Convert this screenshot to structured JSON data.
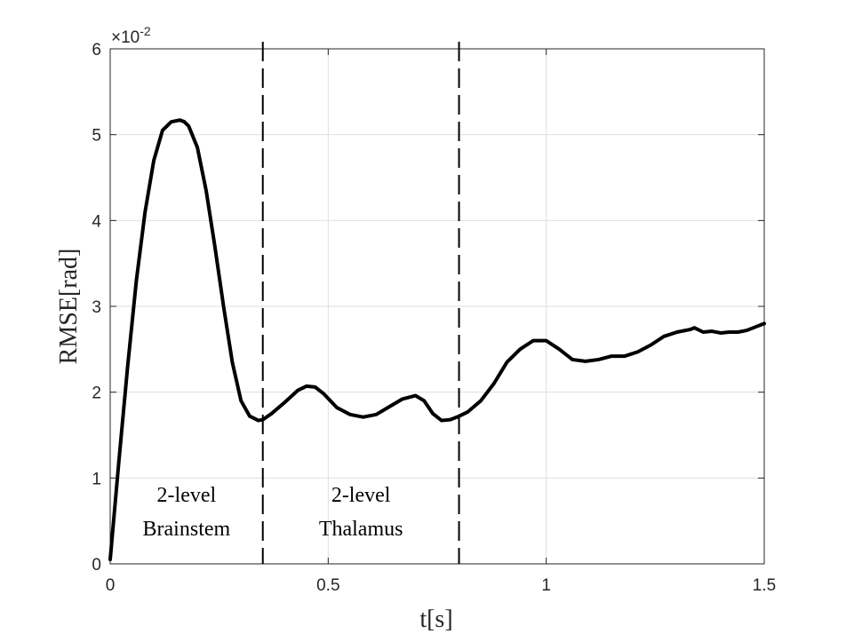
{
  "chart_data": {
    "type": "line",
    "title": "",
    "xlabel": "t[s]",
    "ylabel": "RMSE[rad]",
    "xlim": [
      0,
      1.5
    ],
    "ylim": [
      0,
      6
    ],
    "x_ticks": [
      0,
      0.5,
      1,
      1.5
    ],
    "x_tick_labels": [
      "0",
      "0.5",
      "1",
      "1.5"
    ],
    "y_ticks": [
      0,
      1,
      2,
      3,
      4,
      5,
      6
    ],
    "y_tick_labels": [
      "0",
      "1",
      "2",
      "3",
      "4",
      "5",
      "6"
    ],
    "y_multiplier_base": "×10",
    "y_multiplier_exp": "-2",
    "grid": true,
    "line_color": "#000000",
    "series": [
      {
        "x": [
          0,
          0.02,
          0.04,
          0.06,
          0.08,
          0.1,
          0.12,
          0.14,
          0.16,
          0.17,
          0.18,
          0.2,
          0.22,
          0.24,
          0.26,
          0.28,
          0.3,
          0.32,
          0.34,
          0.35,
          0.37,
          0.4,
          0.43,
          0.45,
          0.47,
          0.49,
          0.52,
          0.55,
          0.58,
          0.61,
          0.64,
          0.67,
          0.7,
          0.72,
          0.74,
          0.76,
          0.78,
          0.8,
          0.82,
          0.85,
          0.88,
          0.91,
          0.94,
          0.97,
          1.0,
          1.03,
          1.06,
          1.09,
          1.12,
          1.15,
          1.18,
          1.21,
          1.24,
          1.27,
          1.3,
          1.33,
          1.34,
          1.36,
          1.38,
          1.4,
          1.42,
          1.44,
          1.46,
          1.48,
          1.5
        ],
        "y": [
          0.05,
          1.2,
          2.3,
          3.3,
          4.1,
          4.7,
          5.05,
          5.15,
          5.17,
          5.15,
          5.1,
          4.85,
          4.35,
          3.7,
          3.0,
          2.35,
          1.9,
          1.72,
          1.67,
          1.68,
          1.75,
          1.88,
          2.02,
          2.07,
          2.06,
          1.98,
          1.82,
          1.74,
          1.71,
          1.74,
          1.83,
          1.92,
          1.96,
          1.9,
          1.75,
          1.67,
          1.68,
          1.72,
          1.77,
          1.9,
          2.1,
          2.35,
          2.5,
          2.6,
          2.6,
          2.5,
          2.38,
          2.36,
          2.38,
          2.42,
          2.42,
          2.47,
          2.55,
          2.65,
          2.7,
          2.73,
          2.75,
          2.7,
          2.71,
          2.69,
          2.7,
          2.7,
          2.72,
          2.76,
          2.8
        ]
      }
    ],
    "vlines": [
      0.35,
      0.8
    ],
    "annotations": [
      {
        "x": 0.175,
        "lines": [
          "2-level",
          "Brainstem"
        ]
      },
      {
        "x": 0.575,
        "lines": [
          "2-level",
          "Thalamus"
        ]
      }
    ]
  }
}
